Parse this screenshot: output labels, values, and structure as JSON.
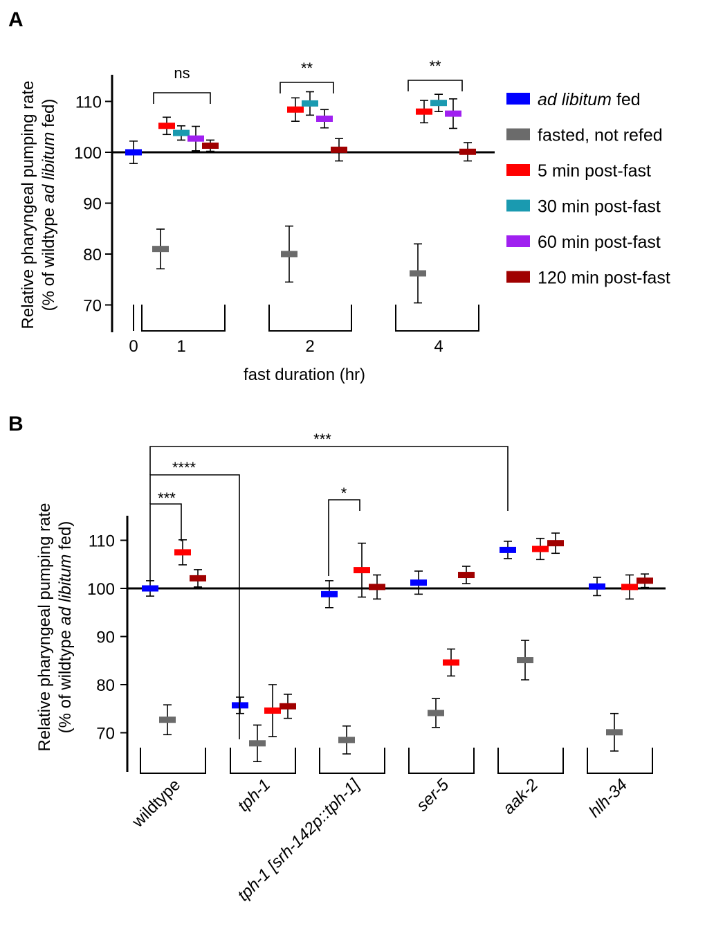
{
  "colors": {
    "ad_libitum": "#0000ff",
    "fasted": "#6b6b6b",
    "post5": "#ff0000",
    "post30": "#1a9ab0",
    "post60": "#a020f0",
    "post120": "#a00000"
  },
  "chart_data": [
    {
      "panel": "A",
      "type": "scatter",
      "ylabel_line1": "Relative pharyngeal pumping rate",
      "ylabel_line2_pre": "(% of wildtype ",
      "ylabel_line2_it": "ad libitum",
      "ylabel_line2_post": " fed)",
      "xlabel": "fast duration (hr)",
      "ylim": [
        65,
        115
      ],
      "yticks": [
        70,
        80,
        90,
        100,
        110
      ],
      "groups": [
        "0",
        "1",
        "2",
        "4"
      ],
      "series": [
        {
          "name_it": "ad libitum",
          "name": " fed",
          "color_key": "ad_libitum",
          "points": [
            {
              "group": "0",
              "y": 100,
              "err": 2.2
            }
          ]
        },
        {
          "name": "fasted, not refed",
          "color_key": "fasted",
          "points": [
            {
              "group": "1",
              "y": 81,
              "err": 3.9
            },
            {
              "group": "2",
              "y": 80,
              "err": 5.5
            },
            {
              "group": "4",
              "y": 76.2,
              "err": 5.8
            }
          ]
        },
        {
          "name": "5 min post-fast",
          "color_key": "post5",
          "points": [
            {
              "group": "1",
              "y": 105.2,
              "err": 1.7
            },
            {
              "group": "2",
              "y": 108.4,
              "err": 2.3
            },
            {
              "group": "4",
              "y": 108,
              "err": 2.2
            }
          ]
        },
        {
          "name": "30 min post-fast",
          "color_key": "post30",
          "points": [
            {
              "group": "1",
              "y": 103.8,
              "err": 1.4
            },
            {
              "group": "2",
              "y": 109.6,
              "err": 2.3
            },
            {
              "group": "4",
              "y": 109.7,
              "err": 1.7
            }
          ]
        },
        {
          "name": "60 min post-fast",
          "color_key": "post60",
          "points": [
            {
              "group": "1",
              "y": 102.7,
              "err": 2.4
            },
            {
              "group": "2",
              "y": 106.6,
              "err": 1.8
            },
            {
              "group": "4",
              "y": 107.6,
              "err": 2.9
            }
          ]
        },
        {
          "name": "120 min post-fast",
          "color_key": "post120",
          "points": [
            {
              "group": "1",
              "y": 101.3,
              "err": 1.1
            },
            {
              "group": "2",
              "y": 100.5,
              "err": 2.2
            },
            {
              "group": "4",
              "y": 100.1,
              "err": 1.8
            }
          ]
        }
      ],
      "annotations": [
        {
          "text": "ns",
          "group": "1"
        },
        {
          "text": "**",
          "group": "2"
        },
        {
          "text": "**",
          "group": "4"
        }
      ]
    },
    {
      "panel": "B",
      "type": "scatter",
      "ylabel_line1": "Relative pharyngeal pumping rate",
      "ylabel_line2_pre": "(% of wildtype ",
      "ylabel_line2_it": "ad libitum",
      "ylabel_line2_post": " fed)",
      "ylim": [
        64,
        115
      ],
      "yticks": [
        70,
        80,
        90,
        100,
        110
      ],
      "categories": [
        "wildtype",
        "tph-1",
        "tph-1 [srh-142p::tph-1]",
        "ser-5",
        "aak-2",
        "hlh-34"
      ],
      "category_italic": [
        false,
        true,
        true,
        true,
        true,
        true
      ],
      "series": [
        {
          "name": "ad libitum fed",
          "color_key": "ad_libitum",
          "values": [
            100,
            75.7,
            98.8,
            101.2,
            108,
            100.4
          ],
          "errors": [
            1.6,
            1.7,
            2.8,
            2.4,
            1.8,
            1.9
          ]
        },
        {
          "name": "fasted, not refed",
          "color_key": "fasted",
          "values": [
            72.7,
            67.8,
            68.5,
            74.1,
            85.1,
            70.1
          ],
          "errors": [
            3.1,
            3.8,
            2.9,
            3,
            4.1,
            3.9
          ]
        },
        {
          "name": "5 min post-fast",
          "color_key": "post5",
          "values": [
            107.5,
            74.6,
            103.8,
            84.6,
            108.2,
            100.3
          ],
          "errors": [
            2.6,
            5.4,
            5.6,
            2.8,
            2.2,
            2.5
          ]
        },
        {
          "name": "120 min post-fast",
          "color_key": "post120",
          "values": [
            102.1,
            75.5,
            100.3,
            102.8,
            109.4,
            101.6
          ],
          "errors": [
            1.8,
            2.5,
            2.5,
            1.8,
            2.1,
            1.4
          ]
        }
      ],
      "annotations": [
        {
          "text": "***",
          "from": "wildtype ad libitum fed",
          "to": "wildtype 5 min post-fast"
        },
        {
          "text": "****",
          "from": "wildtype ad libitum fed",
          "to": "tph-1 ad libitum fed"
        },
        {
          "text": "***",
          "from": "wildtype ad libitum fed",
          "to": "aak-2 ad libitum fed"
        },
        {
          "text": "*",
          "from": "tph-1 [srh-142p::tph-1] ad libitum fed",
          "to": "tph-1 [srh-142p::tph-1] 5 min post-fast"
        }
      ]
    }
  ]
}
